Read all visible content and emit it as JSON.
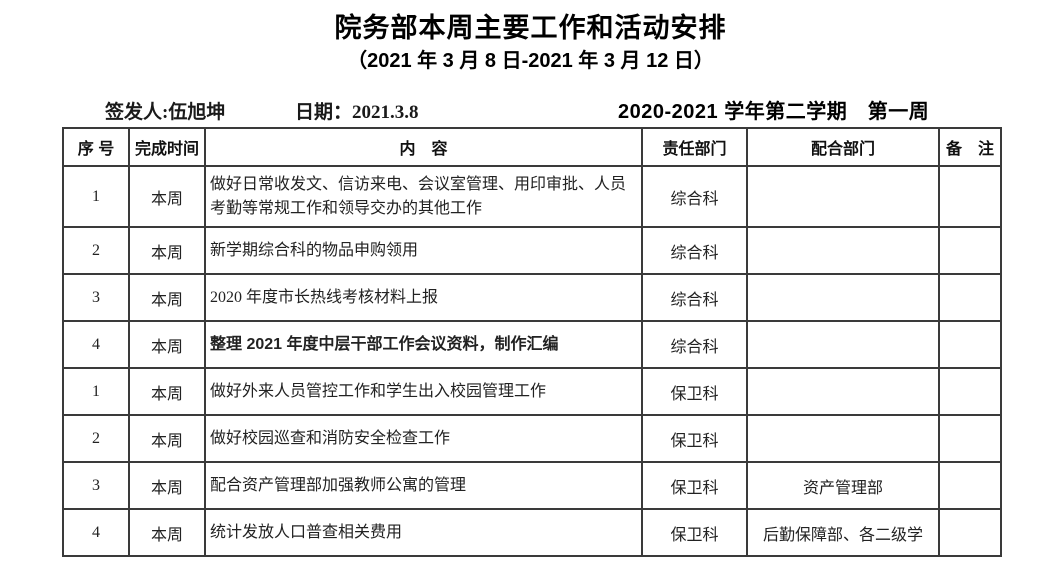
{
  "page": {
    "title": "院务部本周主要工作和活动安排",
    "subtitle": "（2021 年 3 月 8 日-2021 年 3 月 12 日）",
    "meta": {
      "issuer_label": "签发人:",
      "issuer_name": "伍旭坤",
      "date_label": "日期：",
      "date_value": "2021.3.8",
      "semester_week": "2020-2021 学年第二学期　第一周"
    }
  },
  "colors": {
    "background": "#ffffff",
    "text": "#1a1a1a",
    "table_border": "#3a3a3a"
  },
  "table": {
    "headers": [
      "序 号",
      "完成时间",
      "内　容",
      "责任部门",
      "配合部门",
      "备　注"
    ],
    "rows": [
      {
        "no": "1",
        "time": "本周",
        "content": "做好日常收发文、信访来电、会议室管理、用印审批、人员考勤等常规工作和领导交办的其他工作",
        "dept": "综合科",
        "coop": "",
        "note": "",
        "emphasis": false,
        "tall": true
      },
      {
        "no": "2",
        "time": "本周",
        "content": "新学期综合科的物品申购领用",
        "dept": "综合科",
        "coop": "",
        "note": "",
        "emphasis": false,
        "tall": false
      },
      {
        "no": "3",
        "time": "本周",
        "content": "2020 年度市长热线考核材料上报",
        "dept": "综合科",
        "coop": "",
        "note": "",
        "emphasis": false,
        "tall": false
      },
      {
        "no": "4",
        "time": "本周",
        "content": "整理 2021 年度中层干部工作会议资料，制作汇编",
        "dept": "综合科",
        "coop": "",
        "note": "",
        "emphasis": true,
        "tall": false
      },
      {
        "no": "1",
        "time": "本周",
        "content": "做好外来人员管控工作和学生出入校园管理工作",
        "dept": "保卫科",
        "coop": "",
        "note": "",
        "emphasis": false,
        "tall": false
      },
      {
        "no": "2",
        "time": "本周",
        "content": "做好校园巡查和消防安全检查工作",
        "dept": "保卫科",
        "coop": "",
        "note": "",
        "emphasis": false,
        "tall": false
      },
      {
        "no": "3",
        "time": "本周",
        "content": "配合资产管理部加强教师公寓的管理",
        "dept": "保卫科",
        "coop": "资产管理部",
        "note": "",
        "emphasis": false,
        "tall": false
      },
      {
        "no": "4",
        "time": "本周",
        "content": "统计发放人口普查相关费用",
        "dept": "保卫科",
        "coop": "后勤保障部、各二级学",
        "note": "",
        "emphasis": false,
        "tall": false
      }
    ]
  }
}
